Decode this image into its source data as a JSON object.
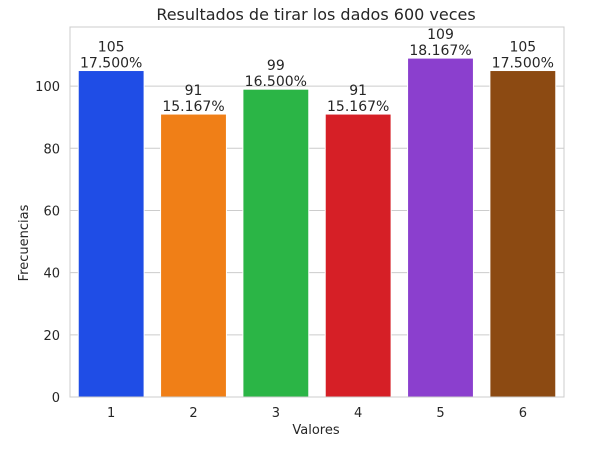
{
  "chart_data": {
    "type": "bar",
    "title": "Resultados de tirar los dados 600 veces",
    "xlabel": "Valores",
    "ylabel": "Frecuencias",
    "categories": [
      "1",
      "2",
      "3",
      "4",
      "5",
      "6"
    ],
    "values": [
      105,
      91,
      99,
      91,
      109,
      105
    ],
    "data_labels": [
      [
        "105",
        "17.500%"
      ],
      [
        "91",
        "15.167%"
      ],
      [
        "99",
        "16.500%"
      ],
      [
        "91",
        "15.167%"
      ],
      [
        "109",
        "18.167%"
      ],
      [
        "105",
        "17.500%"
      ]
    ],
    "ylim": [
      0,
      119
    ],
    "yticks": [
      0,
      20,
      40,
      60,
      80,
      100
    ],
    "grid": true,
    "colors": [
      "#1f4de6",
      "#f07f17",
      "#2bb546",
      "#d61f26",
      "#8b3fce",
      "#8c4a12"
    ]
  }
}
